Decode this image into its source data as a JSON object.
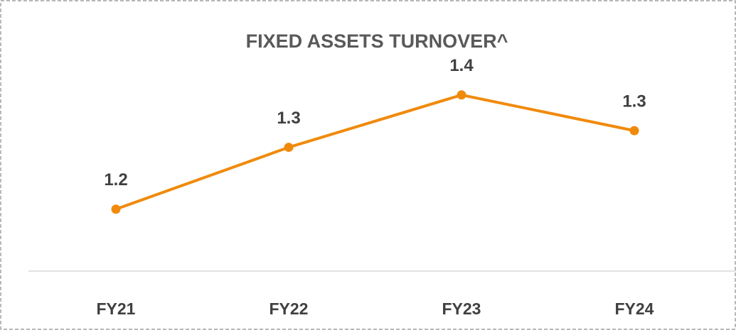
{
  "chart_data": {
    "type": "line",
    "title": "FIXED ASSETS TURNOVER^",
    "categories": [
      "FY21",
      "FY22",
      "FY23",
      "FY24"
    ],
    "values": [
      1.18,
      1.31,
      1.42,
      1.345
    ],
    "value_labels": [
      "1.2",
      "1.3",
      "1.4",
      "1.3"
    ],
    "color": "#f08a0c",
    "ylim": [
      1.05,
      1.53
    ]
  }
}
